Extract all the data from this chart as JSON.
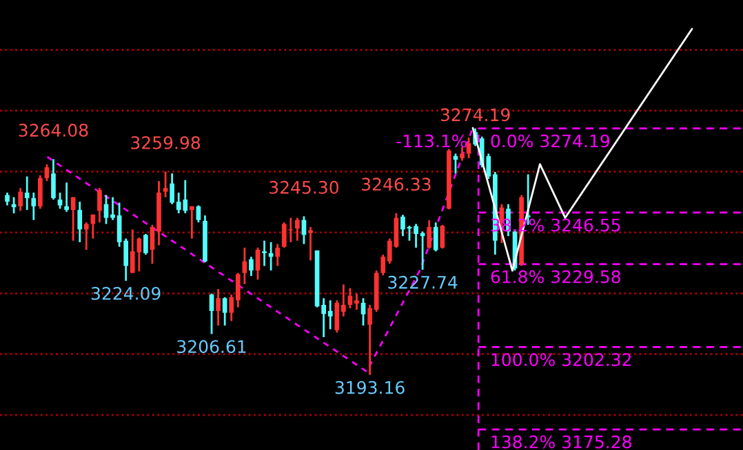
{
  "chart_data": {
    "type": "candlestick",
    "categories": [
      null,
      null,
      null,
      null,
      null,
      null,
      null,
      null,
      null,
      null,
      null,
      null,
      null,
      null,
      null,
      null,
      null,
      null,
      null,
      null,
      null,
      null,
      null,
      null,
      null,
      null,
      null,
      null,
      null,
      null,
      null,
      null,
      null,
      null,
      null,
      null,
      null,
      null,
      null,
      null,
      null,
      null,
      null,
      null,
      null,
      null,
      null,
      null,
      null,
      null,
      null,
      null,
      null,
      null,
      null,
      null,
      null,
      null,
      null,
      null,
      null,
      null,
      null,
      null,
      null,
      null,
      null,
      null,
      null,
      null,
      null,
      null,
      null,
      null,
      null,
      null,
      null,
      null,
      null,
      null
    ],
    "ohlc": [
      [
        3252.3,
        3253.1,
        3248.9,
        3250.1
      ],
      [
        3249.3,
        3251.6,
        3246.3,
        3248.3
      ],
      [
        3248.6,
        3254.6,
        3247.1,
        3253.4
      ],
      [
        3253.1,
        3258.4,
        3247.4,
        3251.3
      ],
      [
        3251.3,
        3253.1,
        3244.1,
        3248.6
      ],
      [
        3248.6,
        3258.8,
        3247.8,
        3257.9
      ],
      [
        3257.9,
        3262.4,
        3256.9,
        3261.4
      ],
      [
        3259.4,
        3264.08,
        3250.8,
        3251.3
      ],
      [
        3250.8,
        3253.1,
        3247.8,
        3248.9
      ],
      [
        3248.6,
        3256.4,
        3246.8,
        3247.4
      ],
      [
        3247.4,
        3251.6,
        3237.3,
        3251.6
      ],
      [
        3247.4,
        3250.1,
        3236.8,
        3241.0
      ],
      [
        3241.0,
        3243.3,
        3234.3,
        3242.8
      ],
      [
        3242.8,
        3245.9,
        3238.0,
        3245.9
      ],
      [
        3247.1,
        3254.6,
        3243.3,
        3253.9
      ],
      [
        3249.3,
        3252.3,
        3242.8,
        3244.8
      ],
      [
        3245.9,
        3251.6,
        3244.1,
        3244.8
      ],
      [
        3245.6,
        3249.8,
        3235.3,
        3236.8
      ],
      [
        3237.3,
        3238.0,
        3224.09,
        3229.0
      ],
      [
        3226.7,
        3241.0,
        3226.7,
        3233.8
      ],
      [
        3233.5,
        3238.3,
        3227.2,
        3238.0
      ],
      [
        3239.2,
        3239.5,
        3232.7,
        3233.2
      ],
      [
        3234.3,
        3242.5,
        3229.7,
        3241.8
      ],
      [
        3240.3,
        3256.9,
        3235.8,
        3253.1
      ],
      [
        3253.4,
        3259.98,
        3251.6,
        3254.6
      ],
      [
        3256.1,
        3259.4,
        3249.3,
        3249.8
      ],
      [
        3250.1,
        3253.1,
        3246.3,
        3247.4
      ],
      [
        3250.8,
        3257.2,
        3246.3,
        3247.1
      ],
      [
        3247.4,
        3248.6,
        3238.0,
        3248.6
      ],
      [
        3248.6,
        3248.9,
        3243.3,
        3244.1
      ],
      [
        3243.8,
        3245.6,
        3230.2,
        3230.5
      ],
      [
        3219.6,
        3219.9,
        3206.61,
        3214.2
      ],
      [
        3214.2,
        3221.4,
        3209.4,
        3218.4
      ],
      [
        3218.4,
        3218.7,
        3209.4,
        3213.6
      ],
      [
        3213.6,
        3219.6,
        3210.9,
        3218.7
      ],
      [
        3217.7,
        3226.7,
        3215.4,
        3226.3
      ],
      [
        3226.7,
        3235.0,
        3223.0,
        3230.5
      ],
      [
        3231.2,
        3232.0,
        3225.7,
        3227.5
      ],
      [
        3227.5,
        3235.0,
        3224.5,
        3234.3
      ],
      [
        3233.8,
        3237.3,
        3229.0,
        3233.2
      ],
      [
        3233.2,
        3236.8,
        3227.5,
        3232.0
      ],
      [
        3232.0,
        3236.2,
        3229.0,
        3235.0
      ],
      [
        3235.3,
        3243.3,
        3235.0,
        3242.8
      ],
      [
        3240.7,
        3244.8,
        3236.8,
        3241.0
      ],
      [
        3241.3,
        3244.8,
        3237.3,
        3244.1
      ],
      [
        3244.1,
        3245.3,
        3236.2,
        3239.2
      ],
      [
        3239.8,
        3241.8,
        3230.8,
        3240.7
      ],
      [
        3234.1,
        3234.1,
        3215.4,
        3215.7
      ],
      [
        3216.2,
        3218.4,
        3205.6,
        3213.2
      ],
      [
        3214.2,
        3217.7,
        3208.2,
        3212.4
      ],
      [
        3207.9,
        3217.7,
        3207.1,
        3216.9
      ],
      [
        3213.9,
        3222.9,
        3212.4,
        3216.2
      ],
      [
        3216.2,
        3221.7,
        3215.1,
        3219.2
      ],
      [
        3216.6,
        3219.9,
        3214.6,
        3217.7
      ],
      [
        3216.9,
        3218.4,
        3209.4,
        3213.1
      ],
      [
        3209.7,
        3216.2,
        3193.16,
        3215.1
      ],
      [
        3214.6,
        3227.5,
        3213.9,
        3226.7
      ],
      [
        3226.7,
        3232.7,
        3225.9,
        3232.0
      ],
      [
        3230.5,
        3238.0,
        3229.7,
        3237.3
      ],
      [
        3235.3,
        3246.33,
        3235.0,
        3244.8
      ],
      [
        3245.2,
        3245.8,
        3238.8,
        3241.0
      ],
      [
        3241.8,
        3242.2,
        3237.3,
        3241.3
      ],
      [
        3242.1,
        3242.8,
        3235.0,
        3239.5
      ],
      [
        3239.8,
        3240.3,
        3227.74,
        3238.8
      ],
      [
        3235.0,
        3244.0,
        3234.7,
        3241.8
      ],
      [
        3241.8,
        3243.3,
        3233.8,
        3234.2
      ],
      [
        3235.0,
        3242.5,
        3234.7,
        3242.2
      ],
      [
        3247.8,
        3267.4,
        3247.6,
        3266.9
      ],
      [
        3265.1,
        3265.9,
        3259.4,
        3263.9
      ],
      [
        3264.4,
        3268.1,
        3263.6,
        3265.9
      ],
      [
        3265.9,
        3271.2,
        3264.4,
        3269.3
      ],
      [
        3273.0,
        3274.19,
        3268.4,
        3268.9
      ],
      [
        3270.9,
        3271.5,
        3261.4,
        3262.1
      ],
      [
        3265.1,
        3265.9,
        3257.6,
        3258.4
      ],
      [
        3259.1,
        3259.9,
        3232.7,
        3237.3
      ],
      [
        3243.3,
        3249.3,
        3236.5,
        3248.2
      ],
      [
        3247.8,
        3249.3,
        3238.8,
        3240.3
      ],
      [
        3240.3,
        3241.0,
        3227.5,
        3228.2
      ],
      [
        3229.7,
        3252.3,
        3229.0,
        3251.6
      ],
      [
        3245.6,
        3259.1,
        3242.5,
        3245.0
      ]
    ],
    "colors": [
      "#54fcfc",
      "#54fcfc",
      "#ff3232",
      "#54fcfc",
      "#54fcfc",
      "#ff3232",
      "#ff3232",
      "#54fcfc",
      "#54fcfc",
      "#54fcfc",
      "#ff3232",
      "#54fcfc",
      "#ff3232",
      "#ff3232",
      "#ff3232",
      "#54fcfc",
      "#54fcfc",
      "#54fcfc",
      "#54fcfc",
      "#ff3232",
      "#ff3232",
      "#54fcfc",
      "#ff3232",
      "#ff3232",
      "#ff3232",
      "#54fcfc",
      "#54fcfc",
      "#54fcfc",
      "#ff3232",
      "#54fcfc",
      "#54fcfc",
      "#54fcfc",
      "#ff3232",
      "#54fcfc",
      "#ff3232",
      "#ff3232",
      "#ff3232",
      "#54fcfc",
      "#ff3232",
      "#54fcfc",
      "#54fcfc",
      "#ff3232",
      "#ff3232",
      "#ff3232",
      "#ff3232",
      "#54fcfc",
      "#ff3232",
      "#54fcfc",
      "#54fcfc",
      "#54fcfc",
      "#ff3232",
      "#ff3232",
      "#ff3232",
      "#ff3232",
      "#54fcfc",
      "#ff3232",
      "#ff3232",
      "#ff3232",
      "#ff3232",
      "#ff3232",
      "#54fcfc",
      "#54fcfc",
      "#54fcfc",
      "#54fcfc",
      "#ff3232",
      "#54fcfc",
      "#ff3232",
      "#ff3232",
      "#54fcfc",
      "#ff3232",
      "#ff3232",
      "#54fcfc",
      "#54fcfc",
      "#54fcfc",
      "#54fcfc",
      "#ff3232",
      "#54fcfc",
      "#54fcfc",
      "#ff3232",
      "#54fcfc"
    ],
    "ref_lines": [
      {
        "axis": "y",
        "value": 3274.19,
        "label": "0.0% 3274.19",
        "color": "#ff00ff",
        "line_style": "dashed"
      },
      {
        "axis": "y",
        "value": 3246.55,
        "label": "38.2% 3246.55",
        "color": "#ff00ff",
        "line_style": "dashed"
      },
      {
        "axis": "y",
        "value": 3229.58,
        "label": "61.8% 3229.58",
        "color": "#ff00ff",
        "line_style": "dashed"
      },
      {
        "axis": "y",
        "value": 3202.32,
        "label": "100.0% 3202.32",
        "color": "#ff00ff",
        "line_style": "dashed"
      },
      {
        "axis": "y",
        "value": 3175.28,
        "label": "138.2% 3175.28",
        "color": "#ff00ff",
        "line_style": "dashed"
      }
    ],
    "annotations": [
      {
        "text": "3264.08",
        "y": 3264.08
      },
      {
        "text": "3259.98",
        "y": 3259.98
      },
      {
        "text": "3245.30",
        "y": 3245.3
      },
      {
        "text": "3246.33",
        "y": 3246.33
      },
      {
        "text": "3274.19",
        "y": 3274.19
      },
      {
        "text": "3224.09",
        "y": 3224.09
      },
      {
        "text": "3206.61",
        "y": 3206.61
      },
      {
        "text": "3193.16",
        "y": 3193.16
      },
      {
        "text": "3227.74",
        "y": 3227.74
      },
      "-113.1%"
    ],
    "ylim": [
      3168.5,
      3316.4
    ],
    "yticks": [
      {
        "value": 3180,
        "label": null
      },
      {
        "value": 3200,
        "label": null
      },
      {
        "value": 3220,
        "label": null
      },
      {
        "value": 3240,
        "label": null
      },
      {
        "value": 3260,
        "label": null
      },
      {
        "value": 3280,
        "label": null
      },
      {
        "value": 3300,
        "label": null
      }
    ],
    "grid": "y"
  }
}
